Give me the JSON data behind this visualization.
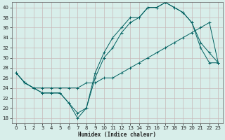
{
  "xlabel": "Humidex (Indice chaleur)",
  "bg_color": "#d8eeea",
  "grid_color": "#c8b8b8",
  "line_color": "#006060",
  "xlim": [
    -0.5,
    23.5
  ],
  "ylim": [
    17,
    41
  ],
  "yticks": [
    18,
    20,
    22,
    24,
    26,
    28,
    30,
    32,
    34,
    36,
    38,
    40
  ],
  "xticks": [
    0,
    1,
    2,
    3,
    4,
    5,
    6,
    7,
    8,
    9,
    10,
    11,
    12,
    13,
    14,
    15,
    16,
    17,
    18,
    19,
    20,
    21,
    22,
    23
  ],
  "curve1_x": [
    0,
    1,
    2,
    3,
    4,
    5,
    6,
    7,
    8,
    9,
    10,
    11,
    12,
    13,
    14,
    15,
    16,
    17,
    18,
    19,
    20,
    21,
    22,
    23
  ],
  "curve1_y": [
    27,
    25,
    24,
    23,
    23,
    23,
    21,
    19,
    20,
    27,
    31,
    34,
    36,
    38,
    38,
    40,
    40,
    41,
    40,
    39,
    37,
    33,
    31,
    29
  ],
  "curve2_x": [
    0,
    1,
    2,
    3,
    4,
    5,
    6,
    7,
    8,
    9,
    10,
    11,
    12,
    13,
    14,
    15,
    16,
    17,
    18,
    19,
    20,
    21,
    22,
    23
  ],
  "curve2_y": [
    27,
    25,
    24,
    23,
    23,
    23,
    21,
    18,
    20,
    26,
    30,
    32,
    35,
    37,
    38,
    40,
    40,
    41,
    40,
    39,
    37,
    32,
    29,
    29
  ],
  "curve3_x": [
    0,
    1,
    2,
    3,
    4,
    5,
    6,
    7,
    8,
    9,
    10,
    11,
    12,
    13,
    14,
    15,
    16,
    17,
    18,
    19,
    20,
    21,
    22,
    23
  ],
  "curve3_y": [
    27,
    25,
    24,
    24,
    24,
    24,
    24,
    24,
    25,
    25,
    26,
    26,
    27,
    28,
    29,
    30,
    31,
    32,
    33,
    34,
    35,
    36,
    37,
    29
  ],
  "xlabel_fontsize": 5.5,
  "tick_fontsize": 5,
  "lw": 0.7,
  "ms": 2.5
}
